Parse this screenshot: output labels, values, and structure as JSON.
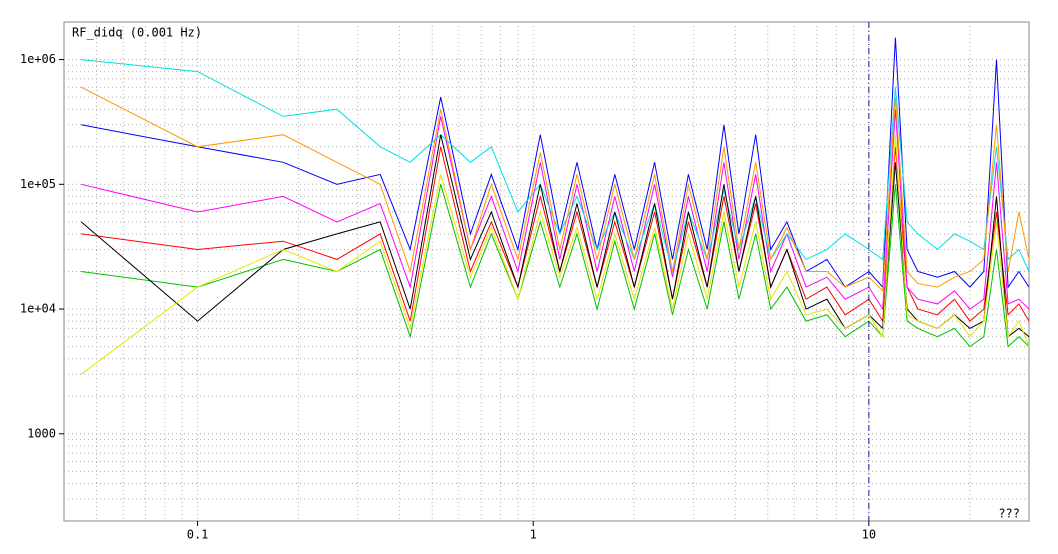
{
  "chart_data": {
    "type": "line",
    "title": "RF_didq (0.001 Hz)",
    "annotation": "???",
    "xscale": "log",
    "yscale": "log",
    "grid": true,
    "xlim": [
      0.04,
      30
    ],
    "ylim": [
      200,
      2000000
    ],
    "xticks": [
      0.1,
      1,
      10
    ],
    "yticks": [
      {
        "value": 1000000,
        "label": "1e+06"
      },
      {
        "value": 100000,
        "label": "1e+05"
      },
      {
        "value": 10000,
        "label": "1e+04"
      },
      1000
    ],
    "xminor": [
      0.05,
      0.06,
      0.07,
      0.08,
      0.09,
      0.2,
      0.3,
      0.4,
      0.5,
      0.6,
      0.7,
      0.8,
      0.9,
      2,
      3,
      4,
      5,
      6,
      7,
      8,
      9,
      20
    ],
    "yminor": [
      300,
      400,
      500,
      600,
      700,
      800,
      900,
      2000,
      3000,
      4000,
      5000,
      6000,
      7000,
      8000,
      9000,
      20000,
      30000,
      40000,
      50000,
      60000,
      70000,
      80000,
      90000,
      200000,
      300000,
      400000,
      500000,
      600000,
      700000,
      800000,
      900000
    ],
    "vline": 10,
    "vline_color": "#1a1aa0",
    "x": [
      0.045,
      0.1,
      0.18,
      0.26,
      0.35,
      0.43,
      0.53,
      0.65,
      0.75,
      0.9,
      1.05,
      1.2,
      1.35,
      1.55,
      1.75,
      2.0,
      2.3,
      2.6,
      2.9,
      3.3,
      3.7,
      4.1,
      4.6,
      5.1,
      5.7,
      6.5,
      7.5,
      8.5,
      10,
      11,
      12,
      13,
      14,
      16,
      18,
      20,
      22,
      24,
      26,
      28,
      30
    ],
    "series": [
      {
        "color": "#ff0000",
        "values": [
          40000,
          30000,
          35000,
          25000,
          40000,
          8000,
          200000,
          20000,
          50000,
          15000,
          80000,
          20000,
          60000,
          15000,
          50000,
          15000,
          60000,
          12000,
          50000,
          15000,
          80000,
          20000,
          70000,
          15000,
          30000,
          12000,
          15000,
          9000,
          12000,
          8000,
          200000,
          15000,
          10000,
          9000,
          12000,
          8000,
          10000,
          60000,
          9000,
          11000,
          8000
        ]
      },
      {
        "color": "#0000ff",
        "values": [
          300000,
          200000,
          150000,
          100000,
          120000,
          30000,
          500000,
          40000,
          120000,
          30000,
          250000,
          40000,
          150000,
          30000,
          120000,
          30000,
          150000,
          25000,
          120000,
          30000,
          300000,
          40000,
          250000,
          30000,
          50000,
          20000,
          25000,
          15000,
          20000,
          15000,
          1500000,
          30000,
          20000,
          18000,
          20000,
          15000,
          20000,
          1000000,
          15000,
          20000,
          15000
        ]
      },
      {
        "color": "#00c000",
        "values": [
          20000,
          15000,
          25000,
          20000,
          30000,
          6000,
          100000,
          15000,
          40000,
          12000,
          50000,
          15000,
          40000,
          10000,
          35000,
          10000,
          40000,
          9000,
          30000,
          10000,
          50000,
          12000,
          40000,
          10000,
          15000,
          8000,
          9000,
          6000,
          8000,
          6000,
          100000,
          8000,
          7000,
          6000,
          7000,
          5000,
          6000,
          30000,
          5000,
          6000,
          5000
        ]
      },
      {
        "color": "#ff00ff",
        "values": [
          100000,
          60000,
          80000,
          50000,
          70000,
          15000,
          350000,
          30000,
          80000,
          20000,
          150000,
          25000,
          100000,
          20000,
          80000,
          20000,
          100000,
          18000,
          80000,
          20000,
          150000,
          25000,
          120000,
          20000,
          40000,
          15000,
          18000,
          12000,
          15000,
          10000,
          400000,
          15000,
          12000,
          11000,
          14000,
          10000,
          12000,
          150000,
          11000,
          12000,
          10000
        ]
      },
      {
        "color": "#00e0e0",
        "values": [
          1000000,
          800000,
          350000,
          400000,
          200000,
          150000,
          250000,
          150000,
          200000,
          60000,
          100000,
          40000,
          80000,
          30000,
          60000,
          25000,
          70000,
          20000,
          60000,
          25000,
          90000,
          30000,
          80000,
          25000,
          40000,
          25000,
          30000,
          40000,
          30000,
          25000,
          600000,
          50000,
          40000,
          30000,
          40000,
          35000,
          30000,
          200000,
          25000,
          30000,
          20000
        ]
      },
      {
        "color": "#000000",
        "values": [
          50000,
          8000,
          30000,
          40000,
          50000,
          10000,
          250000,
          25000,
          60000,
          15000,
          100000,
          20000,
          70000,
          15000,
          60000,
          15000,
          70000,
          12000,
          60000,
          15000,
          100000,
          20000,
          80000,
          15000,
          30000,
          10000,
          12000,
          7000,
          9000,
          7000,
          150000,
          10000,
          8000,
          7000,
          9000,
          7000,
          8000,
          80000,
          6000,
          7000,
          6000
        ]
      },
      {
        "color": "#ff9900",
        "values": [
          600000,
          200000,
          250000,
          150000,
          100000,
          20000,
          400000,
          30000,
          100000,
          25000,
          180000,
          30000,
          120000,
          25000,
          100000,
          25000,
          120000,
          20000,
          100000,
          25000,
          200000,
          30000,
          150000,
          25000,
          45000,
          20000,
          20000,
          15000,
          18000,
          14000,
          500000,
          20000,
          16000,
          15000,
          18000,
          20000,
          25000,
          300000,
          20000,
          60000,
          25000
        ]
      },
      {
        "color": "#e6e600",
        "values": [
          3000,
          15000,
          30000,
          20000,
          35000,
          7000,
          120000,
          18000,
          45000,
          12000,
          60000,
          18000,
          45000,
          12000,
          40000,
          12000,
          45000,
          10000,
          40000,
          12000,
          60000,
          15000,
          50000,
          12000,
          20000,
          9000,
          10000,
          7000,
          9000,
          6000,
          250000,
          9000,
          8000,
          7000,
          9000,
          6000,
          8000,
          50000,
          6000,
          8000,
          5000
        ]
      }
    ]
  }
}
